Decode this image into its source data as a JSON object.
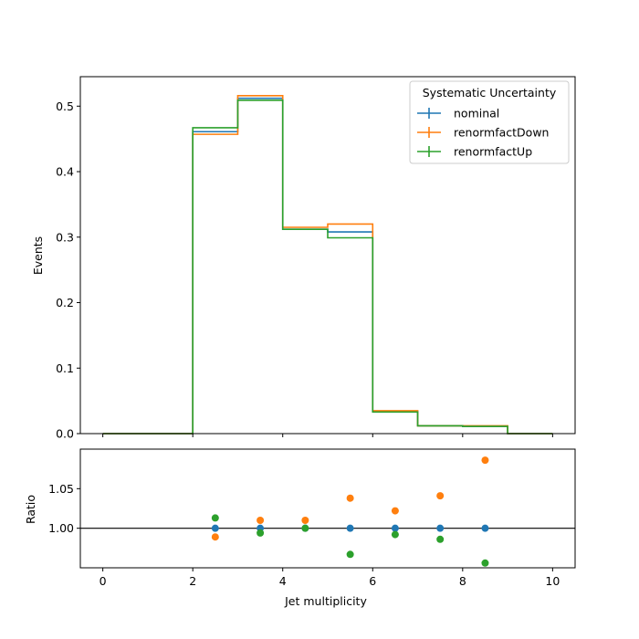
{
  "chart_data": {
    "type": "line",
    "main": {
      "ylabel": "Events",
      "ylim": [
        0,
        0.545
      ],
      "yticks": [
        0.0,
        0.1,
        0.2,
        0.3,
        0.4,
        0.5
      ],
      "ytick_labels": [
        "0.0",
        "0.1",
        "0.2",
        "0.3",
        "0.4",
        "0.5"
      ],
      "style": "step",
      "bin_edges": [
        0,
        1,
        2,
        3,
        4,
        5,
        6,
        7,
        8,
        9,
        10
      ],
      "series": [
        {
          "name": "nominal",
          "color": "#1f77b4",
          "values": [
            0.0,
            0.0,
            0.461,
            0.512,
            0.312,
            0.308,
            0.034,
            0.012,
            0.011,
            0.0
          ]
        },
        {
          "name": "renormfactDown",
          "color": "#ff7f0e",
          "values": [
            0.0,
            0.0,
            0.457,
            0.516,
            0.315,
            0.32,
            0.035,
            0.012,
            0.012,
            0.0
          ]
        },
        {
          "name": "renormfactUp",
          "color": "#2ca02c",
          "values": [
            0.0,
            0.0,
            0.467,
            0.509,
            0.312,
            0.299,
            0.033,
            0.012,
            0.011,
            0.0
          ]
        }
      ],
      "legend": {
        "title": "Systematic Uncertainty",
        "placement": "top-right",
        "entries": [
          "nominal",
          "renormfactDown",
          "renormfactUp"
        ]
      }
    },
    "ratio": {
      "type": "scatter",
      "ylabel": "Ratio",
      "ylim": [
        0.95,
        1.1
      ],
      "yticks": [
        1.0,
        1.05
      ],
      "ytick_labels": [
        "1.00",
        "1.05"
      ],
      "reference_line": 1.0,
      "x": [
        2.5,
        3.5,
        4.5,
        5.5,
        6.5,
        7.5,
        8.5
      ],
      "series": [
        {
          "name": "nominal",
          "color": "#1f77b4",
          "values": [
            1.0,
            1.0,
            1.0,
            1.0,
            1.0,
            1.0,
            1.0
          ]
        },
        {
          "name": "renormfactDown",
          "color": "#ff7f0e",
          "values": [
            0.989,
            1.01,
            1.01,
            1.038,
            1.022,
            1.041,
            1.086
          ]
        },
        {
          "name": "renormfactUp",
          "color": "#2ca02c",
          "values": [
            1.013,
            0.994,
            1.0,
            0.967,
            0.992,
            0.986,
            0.956
          ]
        }
      ]
    },
    "xlabel": "Jet multiplicity",
    "xlim": [
      -0.5,
      10.5
    ],
    "xticks": [
      0,
      2,
      4,
      6,
      8,
      10
    ],
    "xtick_labels": [
      "0",
      "2",
      "4",
      "6",
      "8",
      "10"
    ]
  }
}
